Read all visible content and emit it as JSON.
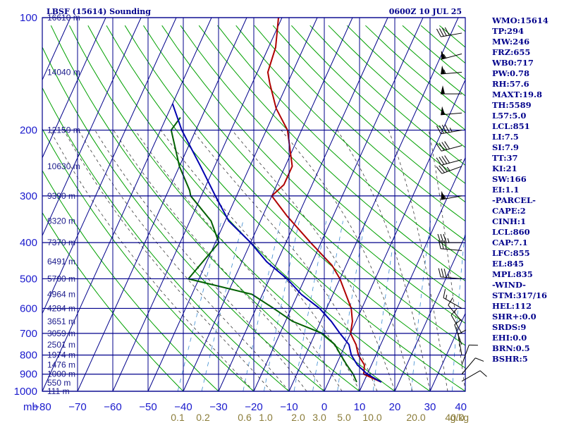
{
  "header": {
    "station": "LBSF (15614) Sounding",
    "time": "0600Z 10 JUL 25"
  },
  "indices": [
    "WMO:15614",
    "TP:294",
    "MW:246",
    "FRZ:655",
    "WB0:717",
    "PW:0.78",
    "RH:57.6",
    "MAXT:19.8",
    "TH:5589",
    "L57:5.0",
    "LCL:851",
    "LI:7.5",
    "SI:7.9",
    "TT:37",
    "KI:21",
    "SW:166",
    "EI:1.1",
    "-PARCEL-",
    "CAPE:2",
    "CINH:1",
    "LCL:860",
    "CAP:7.1",
    "LFC:855",
    "EL:845",
    "MPL:835",
    "-WIND-",
    "STM:317/16",
    "HEL:112",
    "SHR+:0.0",
    "SRDS:9",
    "EHI:0.0",
    "BRN:0.5",
    "BSHR:5"
  ],
  "colors": {
    "grid": "#00008b",
    "isotherm": "#00008b",
    "dry_adiabat": "#00a000",
    "moist_adiabat": "#3a3a3a",
    "mixing_ratio": "#3a8ad0",
    "temperature": "#b00000",
    "dewpoint": "#006000",
    "parcel": "#0000b0"
  },
  "chart_data": {
    "type": "line",
    "title": "LBSF (15614) Sounding",
    "subtitle": "0600Z 10 JUL 25",
    "xlabel": "",
    "ylabel": "mb",
    "pressure_ticks": [
      100,
      200,
      300,
      400,
      500,
      600,
      700,
      800,
      900,
      1000
    ],
    "temperature_ticks": [
      -80,
      -70,
      -60,
      -50,
      -40,
      -30,
      -20,
      -10,
      0,
      10,
      20,
      30,
      40
    ],
    "xlim": [
      -80,
      40
    ],
    "ylim": [
      1000,
      100
    ],
    "y_scale": "log",
    "height_labels": [
      {
        "p": 100,
        "label": "16610 m"
      },
      {
        "p": 140,
        "label": "14040 m"
      },
      {
        "p": 200,
        "label": "12150 m"
      },
      {
        "p": 250,
        "label": "10630 m"
      },
      {
        "p": 300,
        "label": "9390 m"
      },
      {
        "p": 350,
        "label": "8320 m"
      },
      {
        "p": 400,
        "label": "7370 m"
      },
      {
        "p": 450,
        "label": "6491 m"
      },
      {
        "p": 500,
        "label": "5700 m"
      },
      {
        "p": 550,
        "label": "4964 m"
      },
      {
        "p": 600,
        "label": "4284 m"
      },
      {
        "p": 650,
        "label": "3651 m"
      },
      {
        "p": 700,
        "label": "3059 m"
      },
      {
        "p": 750,
        "label": "2501 m"
      },
      {
        "p": 800,
        "label": "1974 m"
      },
      {
        "p": 850,
        "label": "1476 m"
      },
      {
        "p": 900,
        "label": "1000 m"
      },
      {
        "p": 950,
        "label": "550 m"
      },
      {
        "p": 1000,
        "label": "111 m"
      }
    ],
    "mixing_ratio_labels": [
      "0.1",
      "0.2",
      "0.6",
      "1.0",
      "2.0",
      "3.0",
      "5.0",
      "10.0",
      "20.0",
      "40.0",
      "g/kg"
    ],
    "series": [
      {
        "id": "temperature",
        "points": [
          [
            100,
            -61
          ],
          [
            120,
            -58
          ],
          [
            140,
            -57
          ],
          [
            150,
            -55
          ],
          [
            175,
            -50
          ],
          [
            200,
            -44
          ],
          [
            250,
            -38
          ],
          [
            280,
            -38
          ],
          [
            300,
            -40
          ],
          [
            340,
            -33
          ],
          [
            400,
            -23
          ],
          [
            460,
            -14
          ],
          [
            500,
            -10
          ],
          [
            600,
            -3
          ],
          [
            650,
            -1
          ],
          [
            700,
            0
          ],
          [
            750,
            3
          ],
          [
            800,
            5
          ],
          [
            850,
            8
          ],
          [
            900,
            9
          ],
          [
            945,
            15
          ]
        ]
      },
      {
        "id": "dewpoint",
        "points": [
          [
            185,
            -76
          ],
          [
            200,
            -77
          ],
          [
            250,
            -70
          ],
          [
            290,
            -64
          ],
          [
            300,
            -63
          ],
          [
            350,
            -54
          ],
          [
            400,
            -49
          ],
          [
            500,
            -53
          ],
          [
            550,
            -33
          ],
          [
            600,
            -25
          ],
          [
            650,
            -18
          ],
          [
            700,
            -8
          ],
          [
            750,
            -3
          ],
          [
            800,
            0
          ],
          [
            850,
            3
          ],
          [
            900,
            6
          ],
          [
            945,
            8
          ]
        ]
      },
      {
        "id": "parcel",
        "points": [
          [
            170,
            -80
          ],
          [
            200,
            -74
          ],
          [
            250,
            -64
          ],
          [
            300,
            -56
          ],
          [
            350,
            -49
          ],
          [
            400,
            -40
          ],
          [
            450,
            -33
          ],
          [
            500,
            -25
          ],
          [
            550,
            -19
          ],
          [
            600,
            -12
          ],
          [
            650,
            -7
          ],
          [
            700,
            -3
          ],
          [
            750,
            1
          ],
          [
            800,
            3
          ],
          [
            850,
            6
          ],
          [
            900,
            10
          ],
          [
            945,
            15
          ]
        ]
      }
    ],
    "wind_barbs": [
      {
        "p": 110,
        "dir": 260,
        "spd": 40
      },
      {
        "p": 125,
        "dir": 255,
        "spd": 55
      },
      {
        "p": 140,
        "dir": 265,
        "spd": 55
      },
      {
        "p": 160,
        "dir": 270,
        "spd": 50
      },
      {
        "p": 180,
        "dir": 265,
        "spd": 50
      },
      {
        "p": 200,
        "dir": 260,
        "spd": 45
      },
      {
        "p": 220,
        "dir": 255,
        "spd": 40
      },
      {
        "p": 240,
        "dir": 255,
        "spd": 40
      },
      {
        "p": 250,
        "dir": 250,
        "spd": 35
      },
      {
        "p": 300,
        "dir": 260,
        "spd": 55
      },
      {
        "p": 400,
        "dir": 270,
        "spd": 35
      },
      {
        "p": 420,
        "dir": 275,
        "spd": 30
      },
      {
        "p": 500,
        "dir": 275,
        "spd": 35
      },
      {
        "p": 600,
        "dir": 300,
        "spd": 15
      },
      {
        "p": 650,
        "dir": 320,
        "spd": 10
      },
      {
        "p": 700,
        "dir": 330,
        "spd": 10
      },
      {
        "p": 750,
        "dir": 340,
        "spd": 10
      },
      {
        "p": 800,
        "dir": 350,
        "spd": 10
      },
      {
        "p": 850,
        "dir": 20,
        "spd": 10
      },
      {
        "p": 900,
        "dir": 40,
        "spd": 10
      },
      {
        "p": 940,
        "dir": 60,
        "spd": 10
      }
    ]
  }
}
